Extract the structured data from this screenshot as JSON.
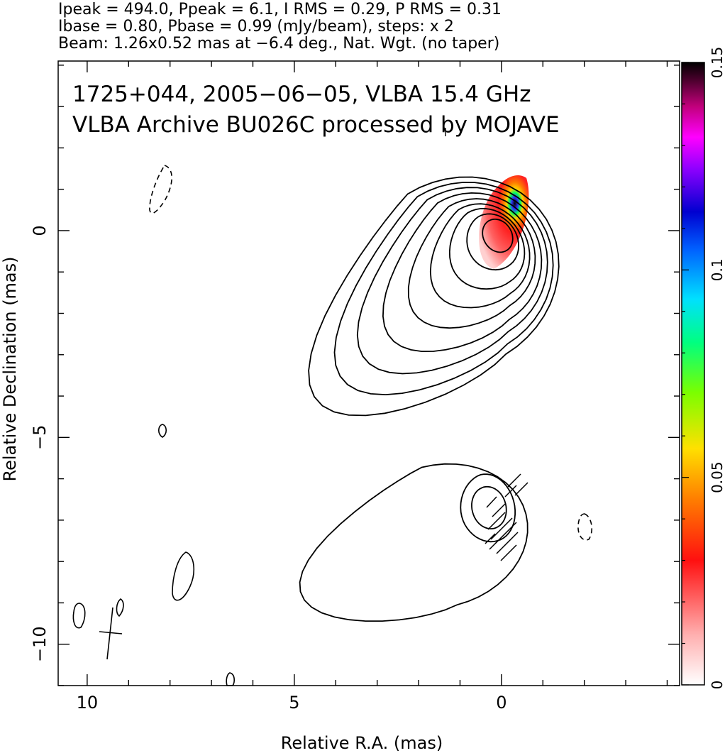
{
  "header": {
    "line1": "Ipeak = 494.0, Ppeak = 6.1, I RMS = 0.29, P RMS = 0.31",
    "line2": "Ibase = 0.80, Pbase = 0.99 (mJy/beam), steps: x 2",
    "line3": "Beam: 1.26x0.52 mas at −6.4 deg., Nat. Wgt. (no taper)"
  },
  "annotation": {
    "line1": "1725+044, 2005−06−05, VLBA 15.4 GHz",
    "line2": "VLBA Archive BU026C processed by MOJAVE"
  },
  "chart_data": {
    "type": "heatmap",
    "title": "",
    "xlabel": "Relative R.A. (mas)",
    "ylabel": "Relative Declination (mas)",
    "xlim": [
      10.7,
      -4.3
    ],
    "ylim": [
      -11.0,
      4.1
    ],
    "x_ticks": [
      10,
      5,
      0
    ],
    "x_tick_labels": [
      "10",
      "5",
      "0"
    ],
    "y_ticks": [
      0,
      -5,
      -10
    ],
    "y_tick_labels": [
      "0",
      "−5",
      "−10"
    ],
    "colorbar": {
      "range": [
        0,
        0.15
      ],
      "ticks": [
        0,
        0.05,
        0.1,
        0.15
      ],
      "tick_labels": [
        "0",
        "0.05",
        "0.1",
        "0.15"
      ],
      "colormap": [
        "#ffffff",
        "#ff9a9a",
        "#ff0000",
        "#ff7a00",
        "#ffdd00",
        "#c8ff00",
        "#00ff00",
        "#00ffcc",
        "#00ccff",
        "#0040ff",
        "#0000cc",
        "#aa00ff",
        "#ff00ff",
        "#aa0060",
        "#000000"
      ]
    },
    "contours": {
      "components": [
        {
          "center": [
            0.0,
            0.0
          ],
          "levels": 9
        },
        {
          "center": [
            0.3,
            -6.7
          ],
          "levels": 3
        }
      ]
    },
    "polarization_peak": [
      -0.5,
      1.1
    ]
  }
}
